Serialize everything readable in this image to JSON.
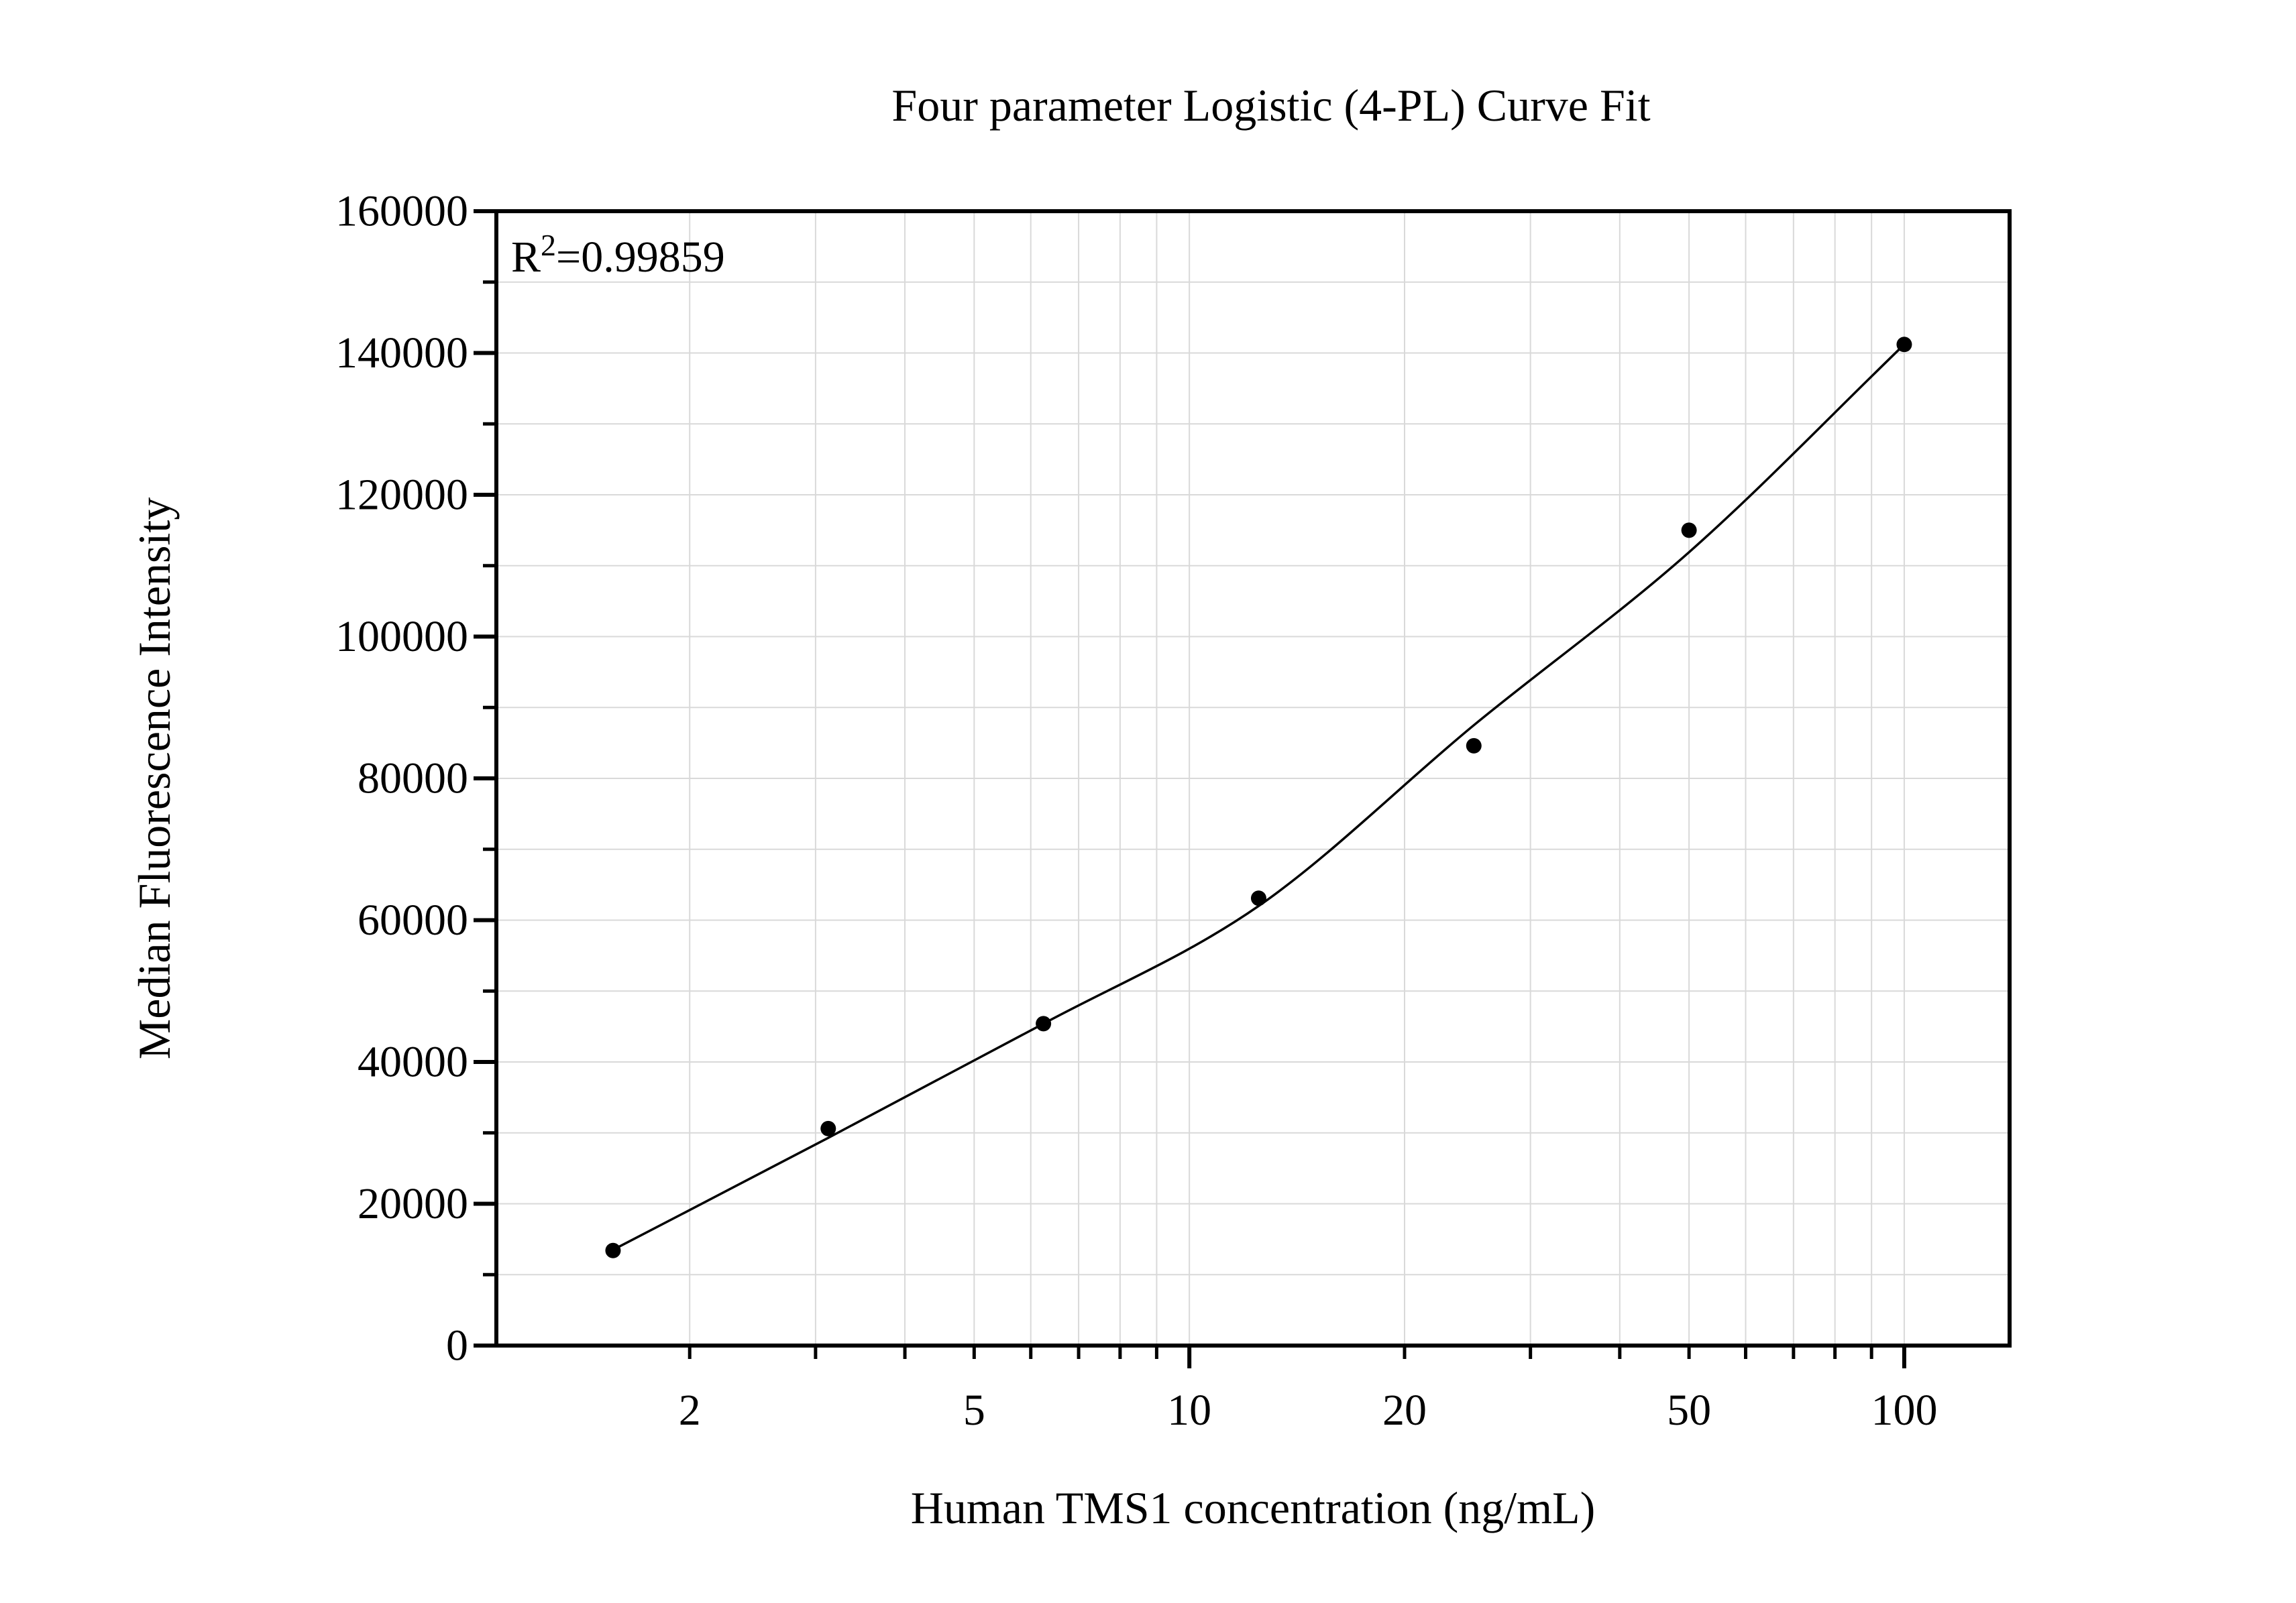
{
  "figure": {
    "background_color": "#ffffff",
    "title": "Four parameter Logistic (4-PL) Curve Fit"
  },
  "chart_data": {
    "type": "scatter",
    "title": "Four parameter Logistic (4-PL) Curve Fit",
    "xlabel": "Human TMS1 concentration (ng/mL)",
    "ylabel": "Median Fluorescence Intensity",
    "annotation": {
      "base": "R",
      "superscript": "2",
      "value": "=0.99859"
    },
    "x_axis": {
      "scale": "log10",
      "min": 1.073,
      "max": 140.4,
      "major_ticks": [
        10,
        100
      ],
      "minor_ticks": [
        2,
        3,
        4,
        5,
        6,
        7,
        8,
        9,
        20,
        30,
        40,
        50,
        60,
        70,
        80,
        90
      ],
      "labeled_ticks": [
        2,
        5,
        10,
        20,
        50,
        100
      ]
    },
    "y_axis": {
      "scale": "linear",
      "min": 0,
      "max": 160000,
      "major_tick_step": 20000,
      "minor_tick_step": 10000,
      "labeled_ticks": [
        0,
        20000,
        40000,
        60000,
        80000,
        100000,
        120000,
        140000,
        160000
      ]
    },
    "grid": {
      "show": true,
      "color": "#d9d9d9",
      "at": "all_ticks"
    },
    "series": [
      {
        "name": "standard-data-points",
        "type": "scatter",
        "marker": "filled-circle",
        "color": "#000000",
        "points": [
          [
            1.5625,
            13400
          ],
          [
            3.125,
            30600
          ],
          [
            6.25,
            45400
          ],
          [
            12.5,
            63100
          ],
          [
            25,
            84600
          ],
          [
            50,
            115000
          ],
          [
            100,
            141200
          ]
        ]
      },
      {
        "name": "4pl-fit-curve",
        "type": "line",
        "color": "#000000",
        "points": [
          [
            1.5625,
            13500
          ],
          [
            3.125,
            29300
          ],
          [
            6.25,
            45400
          ],
          [
            12.5,
            62000
          ],
          [
            25,
            87500
          ],
          [
            50,
            111900
          ],
          [
            100,
            141200
          ]
        ]
      }
    ],
    "colors": {
      "foreground": "#000000",
      "grid": "#d9d9d9",
      "background": "#ffffff"
    }
  }
}
